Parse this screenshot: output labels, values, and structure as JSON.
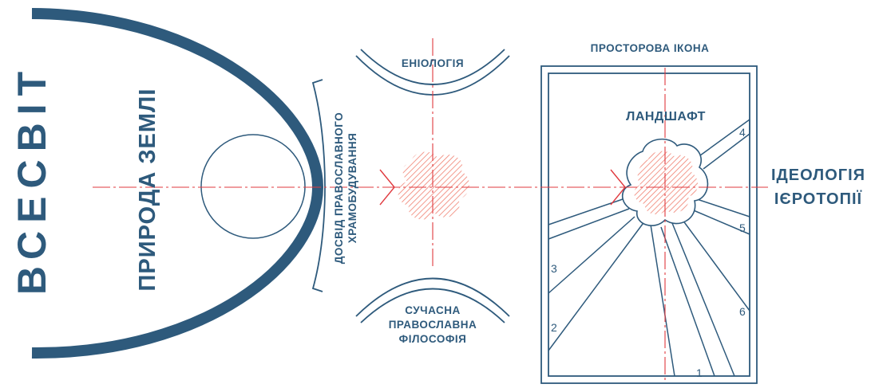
{
  "colors": {
    "ink": "#2e5a7c",
    "axis": "#e0393e",
    "hatch": "#f08070",
    "background": "#ffffff"
  },
  "labels": {
    "vsesvit": "ВСЕСВІТ",
    "pryroda_zemli": "ПРИРОДА ЗЕМЛІ",
    "dosvid_line1": "ДОСВІД ПРАВОСЛАВНОГО",
    "dosvid_line2": "ХРАМОБУДУВАННЯ",
    "eniolohiia": "ЕНІОЛОГІЯ",
    "suchasna_line1": "СУЧАСНА",
    "suchasna_line2": "ПРАВОСЛАВНА",
    "suchasna_line3": "ФІЛОСОФІЯ",
    "prostorova_ikona": "ПРОСТОРОВА ІКОНА",
    "landshaft": "ЛАНДШАФТ",
    "ideolohiia_line1": "ІДЕОЛОГІЯ",
    "ideolohiia_line2": "ІЄРОТОПІЇ"
  },
  "sector_numbers": [
    "1",
    "2",
    "3",
    "4",
    "5",
    "6"
  ]
}
